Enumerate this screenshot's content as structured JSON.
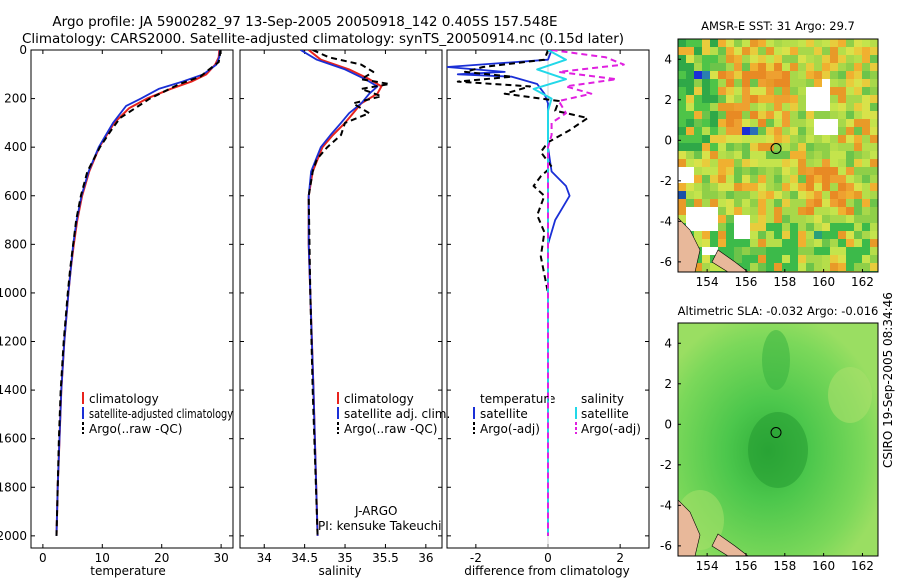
{
  "title": {
    "line1": "Argo profile: JA 5900282_97 13-Sep-2005 20050918_142 0.405S 157.548E",
    "line2": "Climatology: CARS2000. Satellite-adjusted climatology: synTS_20050914.nc (0.15d later)"
  },
  "side_stamp": "CSIRO 19-Sep-2005 08:34:46",
  "colors": {
    "climatology": "#e8231d",
    "satellite": "#1a2fd6",
    "argo": "#000000",
    "satellite_sal": "#22d8e8",
    "argo_sal_adj": "#e020e0",
    "land": "#e8b89a",
    "ocean_green": "#3ec43e"
  },
  "chart_data": [
    {
      "id": "temperature",
      "type": "line",
      "xlabel": "temperature",
      "ylabel": "",
      "xlim": [
        -2,
        32
      ],
      "ylim": [
        2050,
        0
      ],
      "xticks": [
        0,
        10,
        20,
        30
      ],
      "yticks": [
        0,
        200,
        400,
        600,
        800,
        1000,
        1200,
        1400,
        1600,
        1800,
        2000
      ],
      "legend": [
        "climatology",
        "satellite-adjusted climatology",
        "Argo(..raw -QC)"
      ],
      "series": [
        {
          "name": "climatology",
          "depth": [
            0,
            30,
            60,
            100,
            130,
            160,
            200,
            240,
            300,
            400,
            500,
            600,
            700,
            800,
            900,
            1000,
            1200,
            1400,
            1600,
            1800,
            2000
          ],
          "values": [
            29.7,
            29.6,
            29.0,
            27.5,
            25.0,
            21.5,
            17.5,
            14.5,
            12.0,
            9.5,
            7.8,
            6.6,
            5.8,
            5.2,
            4.7,
            4.3,
            3.6,
            3.1,
            2.8,
            2.5,
            2.3
          ]
        },
        {
          "name": "satellite-adjusted climatology",
          "depth": [
            0,
            30,
            60,
            100,
            130,
            160,
            200,
            230,
            300,
            400,
            500,
            600,
            700,
            800,
            900,
            1000,
            1200,
            1400,
            1600,
            1800,
            2000
          ],
          "values": [
            29.8,
            29.7,
            29.2,
            27.0,
            23.5,
            19.5,
            16.5,
            14.0,
            11.8,
            9.4,
            7.7,
            6.5,
            5.7,
            5.1,
            4.7,
            4.3,
            3.6,
            3.1,
            2.8,
            2.5,
            2.3
          ]
        },
        {
          "name": "Argo(..raw -QC)",
          "depth": [
            0,
            20,
            50,
            80,
            110,
            140,
            170,
            200,
            240,
            280,
            330,
            400,
            500,
            600,
            700,
            800,
            900,
            1000,
            1200,
            1400,
            1600,
            1800,
            2000
          ],
          "values": [
            29.9,
            29.8,
            29.6,
            28.0,
            26.5,
            23.0,
            20.5,
            18.0,
            15.5,
            13.0,
            11.5,
            9.6,
            7.5,
            6.4,
            5.6,
            5.1,
            4.6,
            4.2,
            3.5,
            3.0,
            2.7,
            2.5,
            2.3
          ]
        }
      ]
    },
    {
      "id": "salinity",
      "type": "line",
      "xlabel": "salinity",
      "xlim": [
        33.7,
        36.2
      ],
      "ylim": [
        2050,
        0
      ],
      "xticks": [
        34,
        34.5,
        35,
        35.5,
        36
      ],
      "legend": [
        "climatology",
        "satellite adj. clim.",
        "Argo(..raw -QC)"
      ],
      "annotations": [
        "J-ARGO",
        "PI: kensuke Takeuchi"
      ],
      "series": [
        {
          "name": "climatology",
          "depth": [
            0,
            40,
            80,
            120,
            150,
            180,
            220,
            260,
            300,
            350,
            400,
            500,
            600,
            800,
            1000,
            1400,
            2000
          ],
          "values": [
            34.55,
            34.7,
            35.05,
            35.3,
            35.45,
            35.4,
            35.2,
            35.1,
            35.0,
            34.85,
            34.72,
            34.6,
            34.55,
            34.55,
            34.57,
            34.61,
            34.66
          ]
        },
        {
          "name": "satellite adj. clim.",
          "depth": [
            0,
            40,
            80,
            120,
            150,
            180,
            220,
            260,
            300,
            350,
            400,
            500,
            600,
            800,
            1000,
            1400,
            2000
          ],
          "values": [
            34.45,
            34.65,
            35.0,
            35.25,
            35.4,
            35.3,
            35.2,
            35.05,
            34.95,
            34.82,
            34.7,
            34.58,
            34.55,
            34.55,
            34.57,
            34.61,
            34.66
          ]
        },
        {
          "name": "Argo(..raw -QC)",
          "depth": [
            0,
            30,
            60,
            90,
            120,
            140,
            160,
            190,
            220,
            260,
            300,
            350,
            400,
            450,
            500,
            600,
            800,
            1000,
            1400,
            2000
          ],
          "values": [
            34.6,
            34.8,
            35.2,
            35.35,
            35.2,
            35.55,
            35.2,
            35.45,
            35.1,
            35.3,
            35.0,
            34.95,
            34.78,
            34.65,
            34.6,
            34.55,
            34.56,
            34.57,
            34.6,
            34.66
          ]
        }
      ]
    },
    {
      "id": "difference",
      "type": "line",
      "xlabel": "difference from climatology",
      "xlim": [
        -2.8,
        2.8
      ],
      "ylim": [
        2050,
        0
      ],
      "xticks": [
        -2,
        0,
        2
      ],
      "legend_temperature": [
        "temperature",
        "satellite",
        "Argo(-adj)"
      ],
      "legend_salinity": [
        "salinity",
        "satellite",
        "Argo(-adj)"
      ],
      "series": [
        {
          "name": "temperature satellite",
          "depth": [
            0,
            40,
            70,
            90,
            100,
            110,
            140,
            180,
            220,
            300,
            400,
            500,
            560,
            600,
            650,
            700,
            800,
            1000,
            1400,
            2000
          ],
          "values": [
            0.1,
            0.0,
            -2.8,
            -1.2,
            -2.5,
            -1.0,
            -0.3,
            -0.1,
            0.0,
            0.0,
            0.0,
            0.1,
            0.5,
            0.6,
            0.4,
            0.2,
            0.0,
            0.0,
            0.0,
            0.0
          ]
        },
        {
          "name": "temperature Argo(-adj)",
          "depth": [
            0,
            40,
            70,
            90,
            110,
            130,
            150,
            180,
            210,
            250,
            280,
            330,
            380,
            420,
            480,
            520,
            560,
            600,
            680,
            750,
            850,
            1000,
            1200,
            1500,
            2000
          ],
          "values": [
            0.0,
            -0.1,
            -1.8,
            -2.3,
            -1.0,
            -2.5,
            -0.5,
            -1.2,
            0.3,
            0.2,
            1.1,
            0.6,
            0.0,
            -0.2,
            0.1,
            -0.2,
            -0.4,
            -0.1,
            -0.3,
            -0.1,
            -0.2,
            0.0,
            0.0,
            0.0,
            0.0
          ]
        },
        {
          "name": "salinity satellite",
          "depth": [
            0,
            40,
            80,
            120,
            160,
            200,
            250,
            300,
            400,
            600,
            1000,
            2000
          ],
          "values": [
            0.0,
            0.5,
            -0.3,
            0.5,
            -0.4,
            0.1,
            0.0,
            0.0,
            0.0,
            0.0,
            0.0,
            0.0
          ]
        },
        {
          "name": "salinity Argo(-adj)",
          "depth": [
            0,
            30,
            60,
            90,
            120,
            150,
            180,
            210,
            260,
            300,
            350,
            400,
            450,
            500,
            600,
            800,
            1000,
            2000
          ],
          "values": [
            0.1,
            1.6,
            2.1,
            0.3,
            1.9,
            0.5,
            1.2,
            0.3,
            0.5,
            0.1,
            0.1,
            0.0,
            0.0,
            0.0,
            0.0,
            0.0,
            0.0,
            0.0
          ]
        }
      ]
    },
    {
      "id": "sst-map",
      "type": "heatmap",
      "title": "AMSR-E SST: 31  Argo: 29.7",
      "xticks": [
        154,
        156,
        158,
        160,
        162
      ],
      "yticks": [
        4,
        2,
        0,
        -2,
        -4,
        -6
      ],
      "xlim": [
        152.5,
        162.8
      ],
      "ylim": [
        -6.5,
        5
      ],
      "marker": {
        "lon": 157.548,
        "lat": -0.405
      }
    },
    {
      "id": "sla-map",
      "type": "heatmap",
      "title": "Altimetric SLA: -0.032  Argo: -0.016",
      "xticks": [
        154,
        156,
        158,
        160,
        162
      ],
      "yticks": [
        4,
        2,
        0,
        -2,
        -4,
        -6
      ],
      "xlim": [
        152.5,
        162.8
      ],
      "ylim": [
        -6.5,
        5
      ],
      "marker": {
        "lon": 157.548,
        "lat": -0.405
      }
    }
  ]
}
